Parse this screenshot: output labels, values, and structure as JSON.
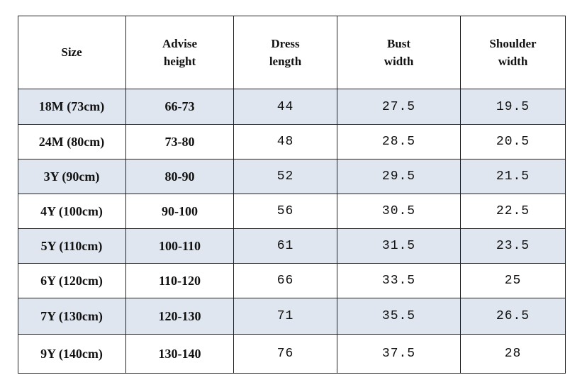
{
  "table": {
    "header": [
      [
        "Size"
      ],
      [
        "Advise",
        "height"
      ],
      [
        "Dress",
        "length"
      ],
      [
        "Bust",
        "width"
      ],
      [
        "Shoulder",
        "width"
      ]
    ],
    "rows": [
      [
        "18M (73cm)",
        "66-73",
        44,
        27.5,
        19.5
      ],
      [
        "24M (80cm)",
        "73-80",
        48,
        28.5,
        20.5
      ],
      [
        "3Y (90cm)",
        "80-90",
        52,
        29.5,
        21.5
      ],
      [
        "4Y (100cm)",
        "90-100",
        56,
        30.5,
        22.5
      ],
      [
        "5Y (110cm)",
        "100-110",
        61,
        31.5,
        23.5
      ],
      [
        "6Y (120cm)",
        "110-120",
        66,
        33.5,
        25
      ],
      [
        "7Y (130cm)",
        "120-130",
        71,
        35.5,
        26.5
      ],
      [
        "9Y (140cm)",
        "130-140",
        76,
        37.5,
        28
      ]
    ]
  }
}
